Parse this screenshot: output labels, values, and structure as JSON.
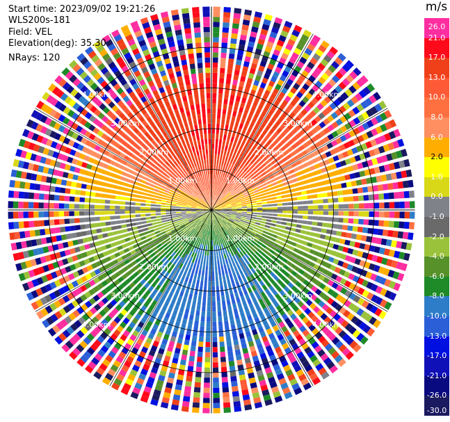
{
  "info": {
    "start_time": "Start time: 2023/09/02 19:21:26",
    "instrument": "WLS200s-181",
    "field": "Field: VEL",
    "elevation": "Elevation(deg): 35.30",
    "nrays": "NRays: 120"
  },
  "colorbar": {
    "unit": "m/s",
    "bins": [
      {
        "label": "26.0",
        "color": "#ff2ea0",
        "dark_text": false
      },
      {
        "label": "21.0",
        "color": "#ff0a1a",
        "dark_text": false
      },
      {
        "label": "17.0",
        "color": "#f0401a",
        "dark_text": false
      },
      {
        "label": "13.0",
        "color": "#ff5a36",
        "dark_text": false
      },
      {
        "label": "10.0",
        "color": "#ff7040",
        "dark_text": false
      },
      {
        "label": "8.0",
        "color": "#ff8f60",
        "dark_text": false
      },
      {
        "label": "6.0",
        "color": "#ffae00",
        "dark_text": false
      },
      {
        "label": "2.0",
        "color": "#ffff00",
        "dark_text": true
      },
      {
        "label": "1.0",
        "color": "#d8d818",
        "dark_text": false
      },
      {
        "label": "0.0",
        "color": "#7f8289",
        "dark_text": false
      },
      {
        "label": "-1.0",
        "color": "#6a6a6a",
        "dark_text": false
      },
      {
        "label": "-2.0",
        "color": "#9ac23a",
        "dark_text": false
      },
      {
        "label": "-4.0",
        "color": "#56912a",
        "dark_text": false
      },
      {
        "label": "-6.0",
        "color": "#1e8a28",
        "dark_text": false
      },
      {
        "label": "-8.0",
        "color": "#2e7dc8",
        "dark_text": false
      },
      {
        "label": "-10.0",
        "color": "#2a5fd8",
        "dark_text": false
      },
      {
        "label": "-13.0",
        "color": "#0010e0",
        "dark_text": false
      },
      {
        "label": "-17.0",
        "color": "#1010b8",
        "dark_text": false
      },
      {
        "label": "-21.0",
        "color": "#0a0a80",
        "dark_text": false
      },
      {
        "label": "-26.0",
        "color": "#1a1a60",
        "dark_text": false
      }
    ],
    "bottom_label": "-30.0"
  },
  "chart_data": {
    "type": "heatmap",
    "subtype": "polar_ppi",
    "title": "",
    "field": "VEL",
    "units": "m/s",
    "nrays": 120,
    "elevation_deg": 35.3,
    "range_ring_labels_km": [
      "1.00km",
      "2.00km",
      "3.00km",
      "4.00km"
    ],
    "range_rings_km": [
      1.0,
      2.0,
      3.0,
      4.0
    ],
    "max_range_km": 5.0,
    "clean_data_extent_km": 3.1,
    "wind_pattern": {
      "dominant_positive_direction": "north",
      "dominant_negative_direction": "south",
      "max_velocity_ms": 17.0,
      "min_velocity_ms": -10.0
    },
    "colorbar_ticks": [
      26.0,
      21.0,
      17.0,
      13.0,
      10.0,
      8.0,
      6.0,
      2.0,
      1.0,
      0.0,
      -1.0,
      -2.0,
      -4.0,
      -6.0,
      -8.0,
      -10.0,
      -13.0,
      -17.0,
      -21.0,
      -26.0,
      -30.0
    ]
  }
}
